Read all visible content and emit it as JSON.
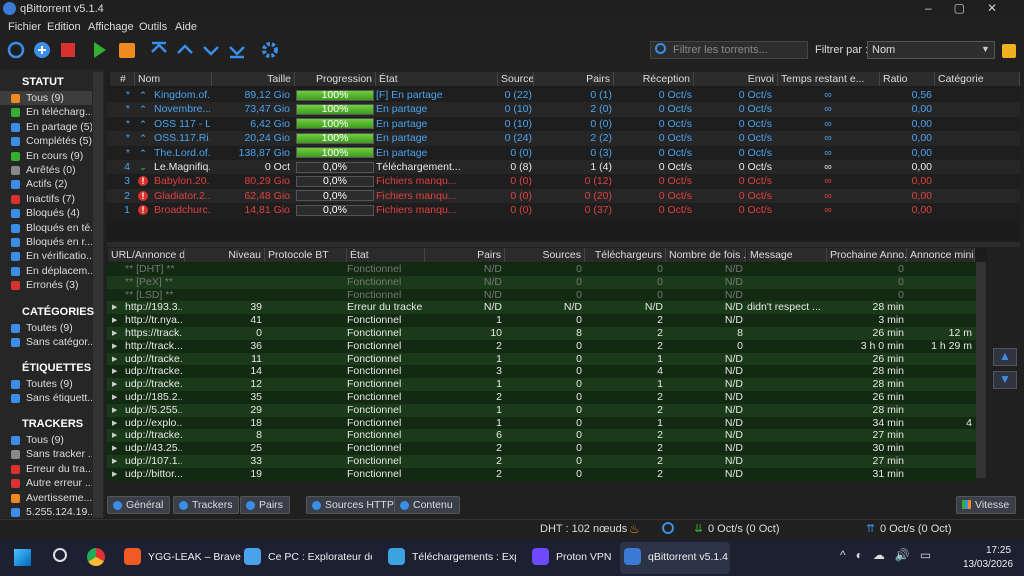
{
  "title_bar": {
    "title": "qBittorrent v5.1.4"
  },
  "menu": [
    "Fichier",
    "Edition",
    "Affichage",
    "Outils",
    "Aide"
  ],
  "toolbar": {
    "search_placeholder": "Filtrer les torrents...",
    "filter_label": "Filtrer par :",
    "filter_value": "Nom"
  },
  "sidebar": {
    "sections": [
      {
        "title": "STATUT",
        "items": [
          "Tous (9)",
          "En télécharg...",
          "En partage (5)",
          "Complétés (5)",
          "En cours (9)",
          "Arrêtés (0)",
          "Actifs (2)",
          "Inactifs (7)",
          "Bloqués (4)",
          "Bloqués en té...",
          "Bloqués en r...",
          "En vérificatio...",
          "En déplacem...",
          "Erronés (3)"
        ]
      },
      {
        "title": "CATÉGORIES",
        "items": [
          "Toutes (9)",
          "Sans catégor..."
        ]
      },
      {
        "title": "ÉTIQUETTES",
        "items": [
          "Toutes (9)",
          "Sans étiquett..."
        ]
      },
      {
        "title": "TRACKERS",
        "items": [
          "Tous (9)",
          "Sans tracker ...",
          "Erreur du tra...",
          "Autre erreur ...",
          "Avertisseme...",
          "5.255.124.19..."
        ]
      }
    ]
  },
  "torrents": {
    "headers": [
      "#",
      "Nom",
      "Taille",
      "Progression",
      "État",
      "Sources",
      "Pairs",
      "Réception",
      "Envoi",
      "Temps restant e...",
      "Ratio",
      "Catégorie"
    ],
    "rows": [
      [
        "*",
        "Kingdom.of...",
        "89,12 Gio",
        "100%",
        "[F] En partage",
        "0 (22)",
        "0 (1)",
        "0 Oct/s",
        "0 Oct/s",
        "∞",
        "0,56"
      ],
      [
        "*",
        "Novembre...",
        "73,47 Gio",
        "100%",
        "En partage",
        "0 (10)",
        "2 (0)",
        "0 Oct/s",
        "0 Oct/s",
        "∞",
        "0,00"
      ],
      [
        "*",
        "OSS 117 - L...",
        "6,42 Gio",
        "100%",
        "En partage",
        "0 (10)",
        "0 (0)",
        "0 Oct/s",
        "0 Oct/s",
        "∞",
        "0,00"
      ],
      [
        "*",
        "OSS.117.Ri...",
        "20,24 Gio",
        "100%",
        "En partage",
        "0 (24)",
        "2 (2)",
        "0 Oct/s",
        "0 Oct/s",
        "∞",
        "0,00"
      ],
      [
        "*",
        "The.Lord.of...",
        "138,87 Gio",
        "100%",
        "En partage",
        "0 (0)",
        "0 (3)",
        "0 Oct/s",
        "0 Oct/s",
        "∞",
        "0,00"
      ],
      [
        "4",
        "Le.Magnifiq...",
        "0 Oct",
        "0,0%",
        "Téléchargement...",
        "0 (8)",
        "1 (4)",
        "0 Oct/s",
        "0 Oct/s",
        "∞",
        "0,00"
      ],
      [
        "3",
        "Babylon.20...",
        "80,29 Gio",
        "0,0%",
        "Fichiers manqu...",
        "0 (0)",
        "0 (12)",
        "0 Oct/s",
        "0 Oct/s",
        "∞",
        "0,00"
      ],
      [
        "2",
        "Gladiator.2...",
        "62,48 Gio",
        "0,0%",
        "Fichiers manqu...",
        "0 (0)",
        "0 (20)",
        "0 Oct/s",
        "0 Oct/s",
        "∞",
        "0,00"
      ],
      [
        "1",
        "Broadchurc...",
        "14,81 Gio",
        "0,0%",
        "Fichiers manqu...",
        "0 (0)",
        "0 (37)",
        "0 Oct/s",
        "0 Oct/s",
        "∞",
        "0,00"
      ]
    ]
  },
  "trackers": {
    "headers": [
      "URL/Annonce d...",
      "Niveau",
      "Protocole BT",
      "État",
      "Pairs",
      "Sources",
      "Téléchargeurs",
      "Nombre de fois ...",
      "Message",
      "Prochaine Anno...",
      "Annonce minim..."
    ],
    "rows": [
      [
        "** [DHT] **",
        null,
        null,
        "Fonctionnel",
        "N/D",
        "0",
        "0",
        "N/D",
        null,
        "0",
        null
      ],
      [
        "** [PeX] **",
        null,
        null,
        "Fonctionnel",
        "N/D",
        "0",
        "0",
        "N/D",
        null,
        "0",
        null
      ],
      [
        "** [LSD] **",
        null,
        null,
        "Fonctionnel",
        "N/D",
        "0",
        "0",
        "N/D",
        null,
        "0",
        null
      ],
      [
        "http://193.3...",
        "39",
        null,
        "Erreur du tracker",
        "N/D",
        "N/D",
        "N/D",
        "N/D",
        "didn't respect ...",
        "28 min",
        null
      ],
      [
        "http://tr.nya...",
        "41",
        null,
        "Fonctionnel",
        "1",
        "0",
        "2",
        "N/D",
        null,
        "3 min",
        null
      ],
      [
        "https://track...",
        "0",
        null,
        "Fonctionnel",
        "10",
        "8",
        "2",
        "8",
        null,
        "26 min",
        "12 m"
      ],
      [
        "http://track...",
        "36",
        null,
        "Fonctionnel",
        "2",
        "0",
        "2",
        "0",
        null,
        "3 h 0 min",
        "1 h 29 m"
      ],
      [
        "udp://tracke...",
        "11",
        null,
        "Fonctionnel",
        "1",
        "0",
        "1",
        "N/D",
        null,
        "26 min",
        null
      ],
      [
        "udp://tracke...",
        "14",
        null,
        "Fonctionnel",
        "3",
        "0",
        "4",
        "N/D",
        null,
        "28 min",
        null
      ],
      [
        "udp://tracke...",
        "12",
        null,
        "Fonctionnel",
        "1",
        "0",
        "1",
        "N/D",
        null,
        "28 min",
        null
      ],
      [
        "udp://185.2...",
        "35",
        null,
        "Fonctionnel",
        "2",
        "0",
        "2",
        "N/D",
        null,
        "26 min",
        null
      ],
      [
        "udp://5.255...",
        "29",
        null,
        "Fonctionnel",
        "1",
        "0",
        "2",
        "N/D",
        null,
        "28 min",
        null
      ],
      [
        "udp://explo...",
        "18",
        null,
        "Fonctionnel",
        "1",
        "0",
        "1",
        "N/D",
        null,
        "34 min",
        "4"
      ],
      [
        "udp://tracke...",
        "8",
        null,
        "Fonctionnel",
        "6",
        "0",
        "2",
        "N/D",
        null,
        "27 min",
        null
      ],
      [
        "udp://43.25...",
        "25",
        null,
        "Fonctionnel",
        "2",
        "0",
        "2",
        "N/D",
        null,
        "30 min",
        null
      ],
      [
        "udp://107.1...",
        "33",
        null,
        "Fonctionnel",
        "2",
        "0",
        "2",
        "N/D",
        null,
        "27 min",
        null
      ],
      [
        "udp://bittor...",
        "19",
        null,
        "Fonctionnel",
        "2",
        "0",
        "2",
        "N/D",
        null,
        "31 min",
        null
      ]
    ]
  },
  "tabs": [
    "Général",
    "Trackers",
    "Pairs",
    "Sources HTTP",
    "Contenu"
  ],
  "speed_button": "Vitesse",
  "status_bar": {
    "dht": "DHT : 102 nœuds",
    "download": "0 Oct/s (0 Oct)",
    "upload": "0 Oct/s (0 Oct)"
  },
  "taskbar": {
    "apps": [
      "YGG-LEAK – Brave",
      "Ce PC : Explorateur de f",
      "Téléchargements : Explc",
      "Proton VPN",
      "qBittorrent v5.1.4"
    ],
    "time": "17:25",
    "date": "13/03/2026"
  }
}
